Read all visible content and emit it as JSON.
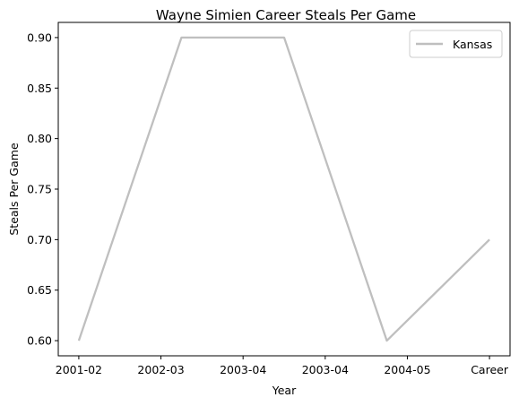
{
  "chart_data": {
    "type": "line",
    "title": "Wayne Simien Career Steals Per Game",
    "xlabel": "Year",
    "ylabel": "Steals Per Game",
    "x": [
      0,
      1,
      2,
      3,
      4
    ],
    "x_tick_labels": [
      "2001-02",
      "2002-03",
      "2003-04",
      "2003-04",
      "2004-05",
      "Career"
    ],
    "x_tick_values": [
      0,
      0.8,
      1.6,
      2.4,
      3.2,
      4.0
    ],
    "series": [
      {
        "name": "Kansas",
        "color": "#bfbfbf",
        "points": [
          {
            "x": 0,
            "y": 0.6
          },
          {
            "x": 1,
            "y": 0.9
          },
          {
            "x": 2,
            "y": 0.9
          },
          {
            "x": 3,
            "y": 0.6
          },
          {
            "x": 4,
            "y": 0.7
          }
        ]
      }
    ],
    "ylim": [
      0.585,
      0.915
    ],
    "xlim": [
      -0.2,
      4.2
    ],
    "y_ticks": [
      0.6,
      0.65,
      0.7,
      0.75,
      0.8,
      0.85,
      0.9
    ],
    "y_tick_labels": [
      "0.60",
      "0.65",
      "0.70",
      "0.75",
      "0.80",
      "0.85",
      "0.90"
    ],
    "grid": false,
    "legend_position": "top-right"
  }
}
